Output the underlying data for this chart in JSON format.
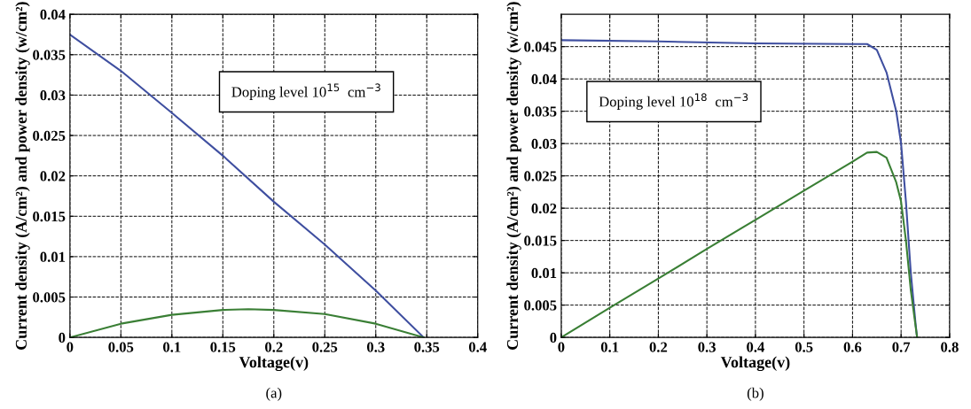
{
  "chart_data": [
    {
      "type": "line",
      "xlabel": "Voltage(v)",
      "ylabel": "Current density (A/cm²) and power density (w/cm²)",
      "xlim": [
        0,
        0.4
      ],
      "xticks": [
        0,
        0.05,
        0.1,
        0.15,
        0.2,
        0.25,
        0.3,
        0.35,
        0.4
      ],
      "ylim": [
        0,
        0.04
      ],
      "yticks": [
        0,
        0.005,
        0.01,
        0.015,
        0.02,
        0.025,
        0.03,
        0.035,
        0.04
      ],
      "grid": true,
      "line_style": "solid",
      "annotations": [
        "Doping level 10$^{15}$  cm$^{−3}$",
        "(a)"
      ],
      "series": [
        {
          "color": "#3f4fa0",
          "x": [
            0,
            0.05,
            0.1,
            0.15,
            0.2,
            0.25,
            0.3,
            0.347
          ],
          "values": [
            0.0375,
            0.033,
            0.0278,
            0.0225,
            0.0168,
            0.0115,
            0.0058,
            0
          ]
        },
        {
          "color": "#3a7f35",
          "x": [
            0,
            0.05,
            0.1,
            0.15,
            0.175,
            0.2,
            0.25,
            0.3,
            0.347
          ],
          "values": [
            0,
            0.0017,
            0.0028,
            0.0034,
            0.0035,
            0.0034,
            0.0029,
            0.0017,
            0
          ]
        }
      ]
    },
    {
      "type": "line",
      "xlabel": "Voltage(v)",
      "ylabel": "Current density (A/cm²) and power density (w/cm²)",
      "xlim": [
        0,
        0.8
      ],
      "xticks": [
        0,
        0.1,
        0.2,
        0.3,
        0.4,
        0.5,
        0.6,
        0.7,
        0.8
      ],
      "ylim": [
        0,
        0.05
      ],
      "yticks": [
        0,
        0.005,
        0.01,
        0.015,
        0.02,
        0.025,
        0.03,
        0.035,
        0.04,
        0.045
      ],
      "grid": true,
      "line_style": "solid",
      "annotations": [
        "Doping level 10$^{18}$  cm$^{−3}$",
        "(b)"
      ],
      "series": [
        {
          "color": "#3f4fa0",
          "x": [
            0,
            0.2,
            0.4,
            0.6,
            0.63,
            0.65,
            0.67,
            0.69,
            0.7,
            0.71,
            0.72,
            0.73,
            0.733
          ],
          "values": [
            0.046,
            0.0458,
            0.0455,
            0.0454,
            0.0454,
            0.0445,
            0.041,
            0.035,
            0.03,
            0.021,
            0.01,
            0.002,
            0
          ]
        },
        {
          "color": "#3a7f35",
          "x": [
            0,
            0.1,
            0.2,
            0.3,
            0.4,
            0.5,
            0.6,
            0.63,
            0.65,
            0.67,
            0.69,
            0.7,
            0.71,
            0.72,
            0.733
          ],
          "values": [
            0,
            0.0046,
            0.0091,
            0.0137,
            0.0182,
            0.0227,
            0.0272,
            0.0286,
            0.0287,
            0.0278,
            0.024,
            0.021,
            0.015,
            0.0073,
            0
          ]
        }
      ]
    }
  ]
}
